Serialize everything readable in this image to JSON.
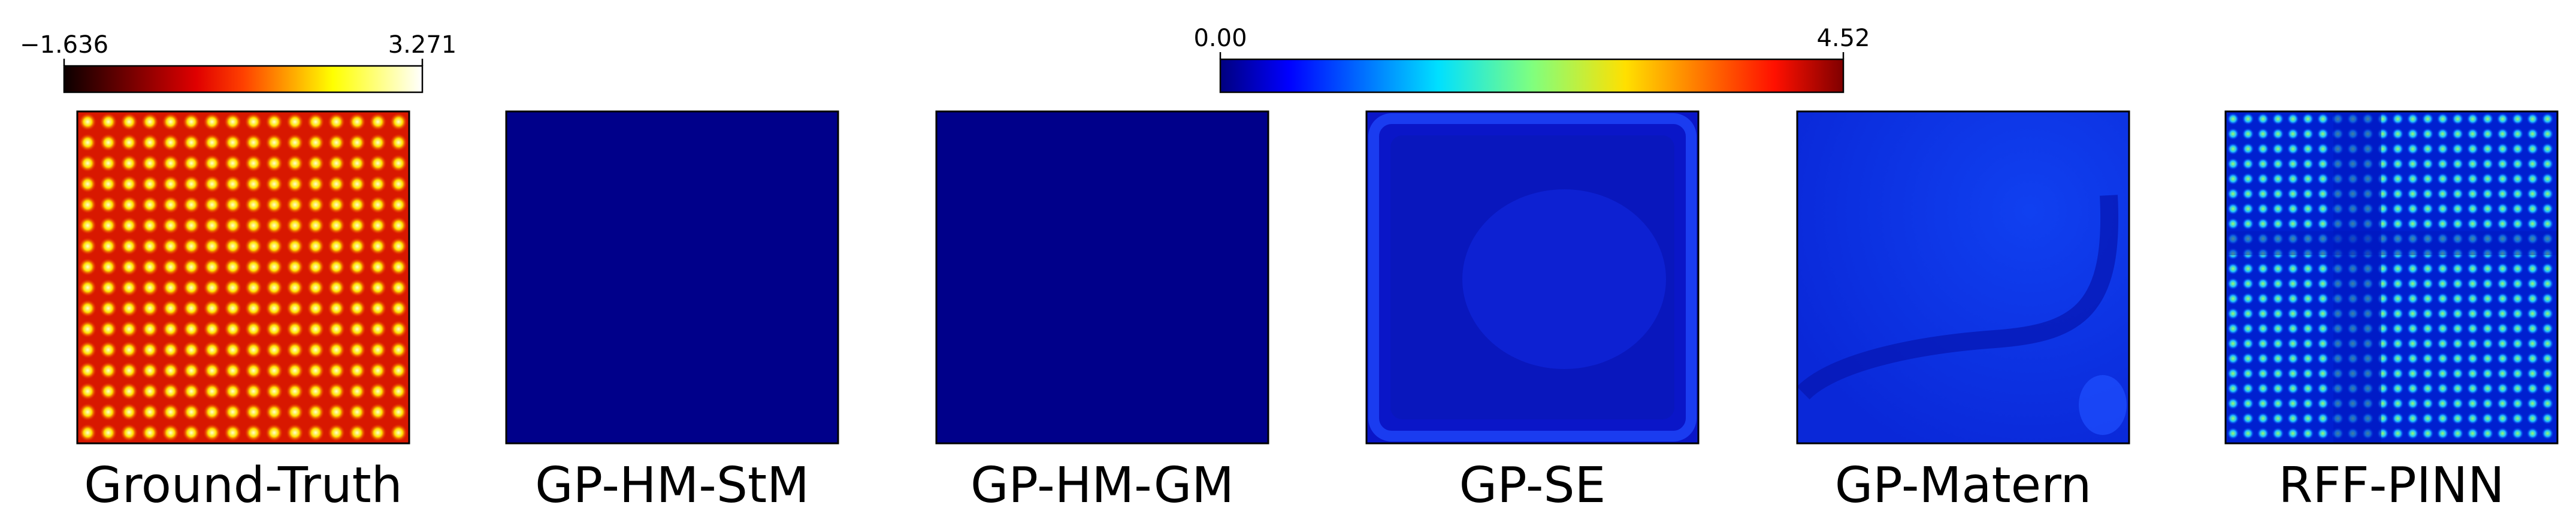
{
  "colorbars": [
    {
      "colormap": "hot",
      "lim": [
        -1.636,
        3.271
      ],
      "ticks": [
        {
          "value": -1.636,
          "label": "−1.636"
        },
        3.271
      ]
    },
    {
      "colormap": "jet",
      "lim": [
        0,
        4.52
      ],
      "ticks": [
        {
          "value": 0,
          "label": "0.00"
        },
        4.52
      ]
    }
  ],
  "panels": [
    {
      "label": "Ground-Truth"
    },
    {
      "label": "GP-HM-StM"
    },
    {
      "label": "GP-HM-GM"
    },
    {
      "label": "GP-SE"
    },
    {
      "label": "GP-Matern"
    },
    {
      "label": "RFF-PINN"
    }
  ]
}
